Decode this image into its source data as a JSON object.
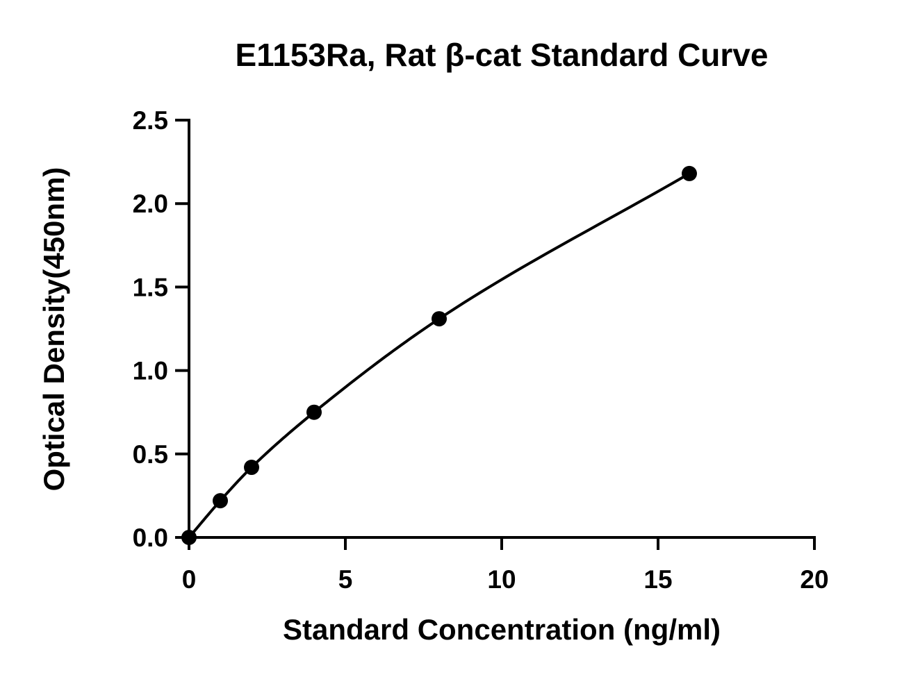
{
  "chart_data": {
    "type": "scatter",
    "title": "E1153Ra, Rat β-cat Standard Curve",
    "xlabel": "Standard Concentration (ng/ml)",
    "ylabel": "Optical Density(450nm)",
    "xlim": [
      0,
      20
    ],
    "ylim": [
      0,
      2.5
    ],
    "x_ticks": [
      "0",
      "5",
      "10",
      "15",
      "20"
    ],
    "y_ticks": [
      "0.0",
      "0.5",
      "1.0",
      "1.5",
      "2.0",
      "2.5"
    ],
    "grid": false,
    "legend": "none",
    "fit_curve": true,
    "series": [
      {
        "x": [
          0,
          1,
          2,
          4,
          8,
          16
        ],
        "y": [
          0.0,
          0.22,
          0.42,
          0.75,
          1.31,
          2.18
        ]
      }
    ]
  }
}
